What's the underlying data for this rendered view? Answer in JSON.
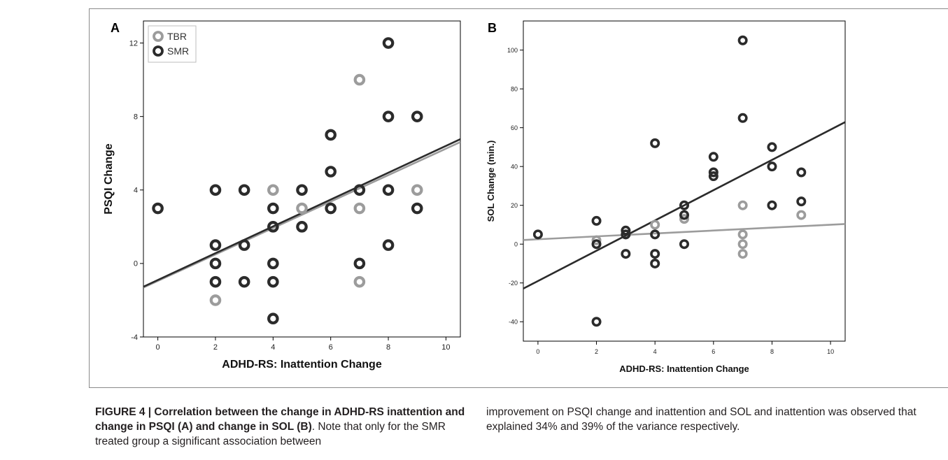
{
  "figure": {
    "caption_left": {
      "label": "FIGURE 4 | Correlation between the change in ADHD-RS inattention and change in PSQI (A) and change in SOL (B)",
      "text": ". Note that only for the SMR treated group a significant association between"
    },
    "caption_right": {
      "text": "improvement on PSQI change and inattention and SOL and inattention was observed that explained 34% and 39% of the variance respectively."
    }
  },
  "colors": {
    "TBR": "#9c9c9c",
    "SMR": "#2b2b2b",
    "plot_bg": "#ffffff",
    "axis": "#000000"
  },
  "chart_data": [
    {
      "panel_label": "A",
      "type": "scatter",
      "xlabel": "ADHD-RS: Inattention Change",
      "ylabel": "PSQI Change",
      "xlim": [
        -0.5,
        10.5
      ],
      "ylim": [
        -4,
        13.2
      ],
      "xticks": [
        0,
        2,
        4,
        6,
        8,
        10
      ],
      "yticks": [
        -4,
        0,
        4,
        8,
        12
      ],
      "legend": {
        "placement": "top-left",
        "entries": [
          "TBR",
          "SMR"
        ]
      },
      "series": [
        {
          "name": "TBR",
          "points": [
            [
              2,
              -2
            ],
            [
              4,
              4
            ],
            [
              5,
              3
            ],
            [
              7,
              10
            ],
            [
              7,
              3
            ],
            [
              7,
              -1
            ],
            [
              9,
              4
            ]
          ],
          "fit": {
            "slope": 0.72,
            "intercept": -0.95
          }
        },
        {
          "name": "SMR",
          "points": [
            [
              0,
              3
            ],
            [
              2,
              4
            ],
            [
              2,
              1
            ],
            [
              2,
              0
            ],
            [
              2,
              -1
            ],
            [
              3,
              4
            ],
            [
              3,
              1
            ],
            [
              3,
              -1
            ],
            [
              4,
              3
            ],
            [
              4,
              2
            ],
            [
              4,
              0
            ],
            [
              4,
              -1
            ],
            [
              4,
              -3
            ],
            [
              5,
              4
            ],
            [
              5,
              2
            ],
            [
              6,
              7
            ],
            [
              6,
              5
            ],
            [
              6,
              3
            ],
            [
              7,
              4
            ],
            [
              7,
              0
            ],
            [
              8,
              12
            ],
            [
              8,
              8
            ],
            [
              8,
              4
            ],
            [
              8,
              1
            ],
            [
              9,
              8
            ],
            [
              9,
              3
            ]
          ],
          "fit": {
            "slope": 0.73,
            "intercept": -0.9
          }
        }
      ]
    },
    {
      "panel_label": "B",
      "type": "scatter",
      "xlabel": "ADHD-RS: Inattention Change",
      "ylabel": "SOL Change (min.)",
      "xlim": [
        -0.5,
        10.5
      ],
      "ylim": [
        -50,
        115
      ],
      "xticks": [
        0,
        2,
        4,
        6,
        8,
        10
      ],
      "yticks": [
        -40,
        -20,
        0,
        20,
        40,
        60,
        80,
        100
      ],
      "series": [
        {
          "name": "TBR",
          "points": [
            [
              2,
              2
            ],
            [
              3,
              5
            ],
            [
              4,
              10
            ],
            [
              5,
              13
            ],
            [
              7,
              20
            ],
            [
              7,
              5
            ],
            [
              7,
              0
            ],
            [
              7,
              -5
            ],
            [
              9,
              15
            ]
          ],
          "fit": {
            "slope": 0.75,
            "intercept": 2.5
          }
        },
        {
          "name": "SMR",
          "points": [
            [
              0,
              5
            ],
            [
              2,
              12
            ],
            [
              2,
              0
            ],
            [
              2,
              -40
            ],
            [
              3,
              7
            ],
            [
              3,
              5
            ],
            [
              3,
              -5
            ],
            [
              4,
              52
            ],
            [
              4,
              5
            ],
            [
              4,
              -5
            ],
            [
              4,
              -10
            ],
            [
              5,
              20
            ],
            [
              5,
              15
            ],
            [
              5,
              0
            ],
            [
              6,
              45
            ],
            [
              6,
              37
            ],
            [
              6,
              35
            ],
            [
              7,
              105
            ],
            [
              7,
              65
            ],
            [
              8,
              50
            ],
            [
              8,
              40
            ],
            [
              8,
              20
            ],
            [
              9,
              37
            ],
            [
              9,
              22
            ]
          ],
          "fit": {
            "slope": 7.8,
            "intercept": -19
          }
        }
      ]
    }
  ]
}
